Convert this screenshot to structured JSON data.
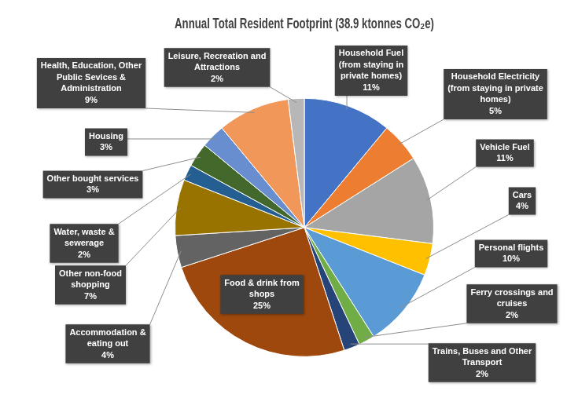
{
  "chart_data": {
    "type": "pie",
    "title": "Annual Total Resident Footprint (38.9 ktonnes CO₂e)",
    "categories": [
      "Household Fuel (from staying in private homes)",
      "Household Electricity (from staying in private homes)",
      "Vehicle Fuel",
      "Cars",
      "Personal flights",
      "Ferry crossings and cruises",
      "Trains, Buses and Other Transport",
      "Food & drink from shops",
      "Accommodation & eating out",
      "Other non-food shopping",
      "Water, waste & sewerage",
      "Other bought services",
      "Housing",
      "Health, Education, Other Public Sevices & Administration",
      "Leisure, Recreation and Attractions"
    ],
    "values": [
      11,
      5,
      11,
      4,
      10,
      2,
      2,
      25,
      4,
      7,
      2,
      3,
      3,
      9,
      2
    ],
    "value_labels": [
      "11%",
      "5%",
      "11%",
      "4%",
      "10%",
      "2%",
      "2%",
      "25%",
      "4%",
      "7%",
      "2%",
      "3%",
      "3%",
      "9%",
      "2%"
    ],
    "colors": [
      "#4472c4",
      "#ed7d31",
      "#a5a5a5",
      "#ffc000",
      "#5b9bd5",
      "#70ad47",
      "#264478",
      "#9e480e",
      "#636363",
      "#997300",
      "#255e91",
      "#43682b",
      "#698ed0",
      "#f1975a",
      "#b7b7b7"
    ],
    "data_labels": true
  }
}
